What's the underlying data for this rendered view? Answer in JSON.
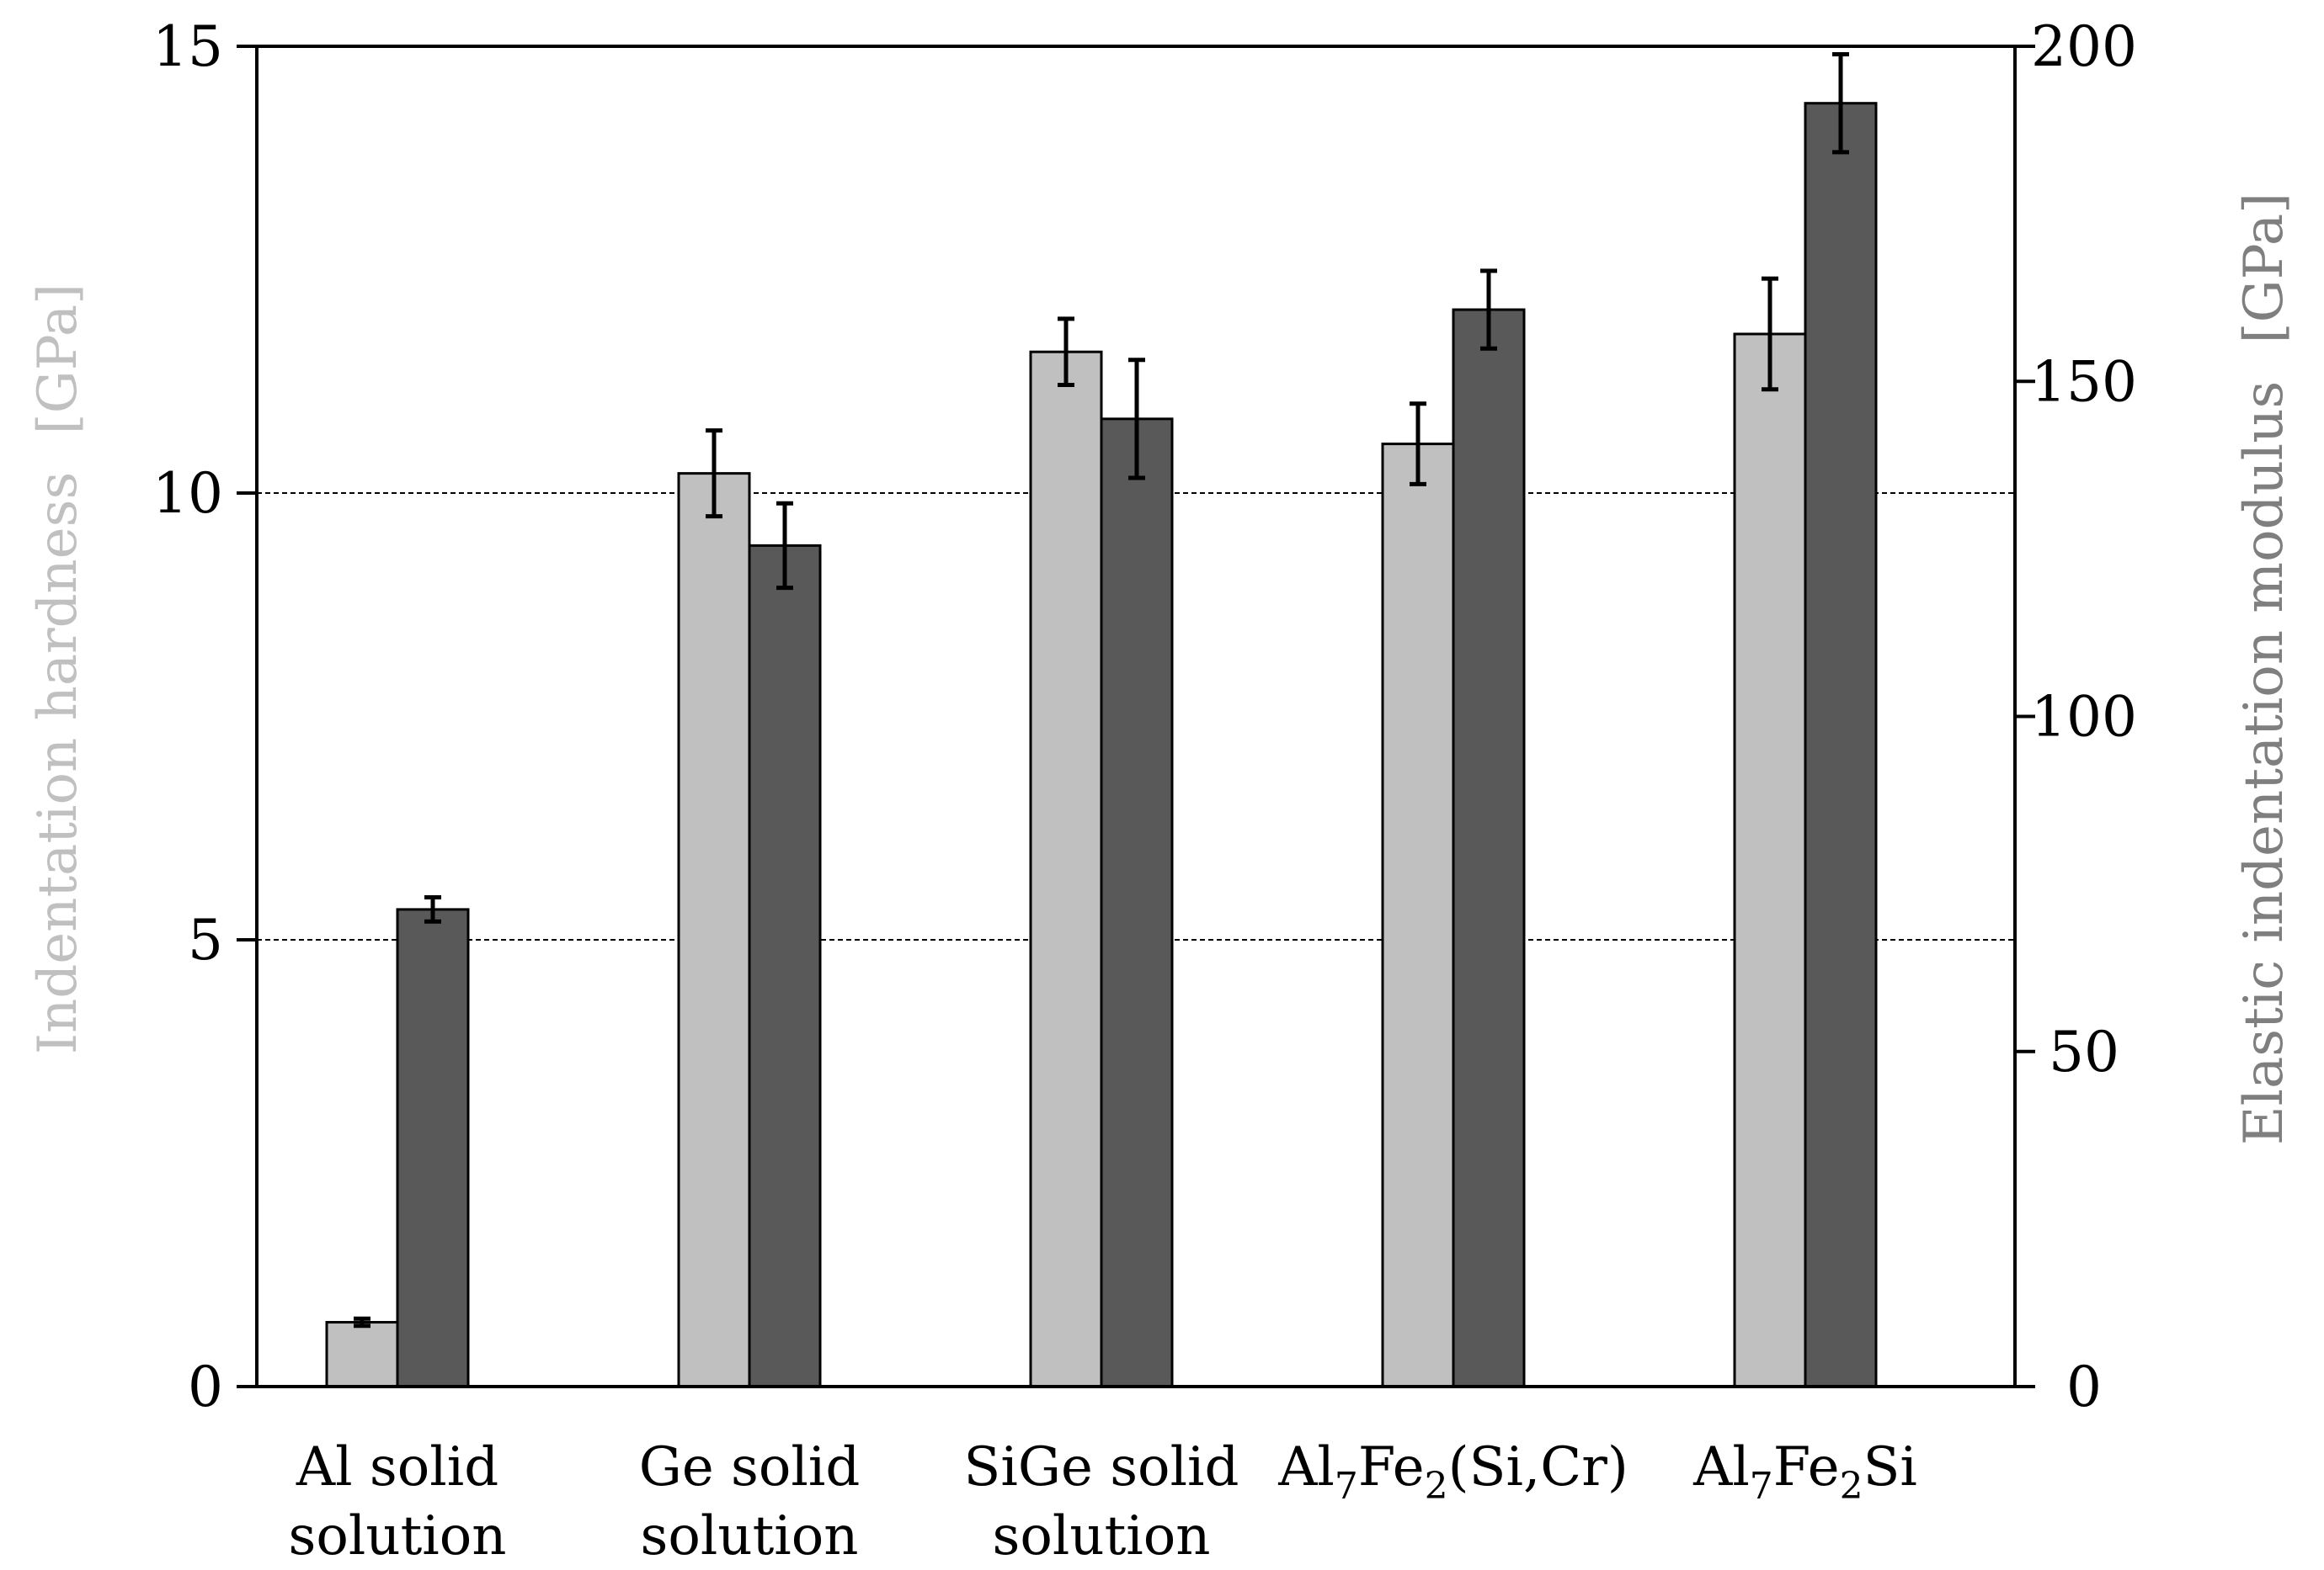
{
  "chart_data": {
    "type": "bar",
    "title": "",
    "categories": [
      {
        "lines": [
          "Al solid",
          "solution"
        ]
      },
      {
        "lines": [
          "Ge solid",
          "solution"
        ]
      },
      {
        "lines": [
          "SiGe solid",
          "solution"
        ]
      },
      {
        "parts": [
          [
            "Al",
            ""
          ],
          [
            "7",
            "sub"
          ],
          [
            "Fe",
            ""
          ],
          [
            "2",
            "sub"
          ],
          [
            "(Si,Cr)",
            ""
          ]
        ]
      },
      {
        "parts": [
          [
            "Al",
            ""
          ],
          [
            "7",
            "sub"
          ],
          [
            "Fe",
            ""
          ],
          [
            "2",
            "sub"
          ],
          [
            "Si",
            ""
          ]
        ]
      }
    ],
    "series": [
      {
        "name": "Indentation hardness",
        "axis": "left",
        "color": "#c0c0c0",
        "values": [
          0.72,
          10.22,
          11.58,
          10.55,
          11.78
        ],
        "errors": [
          0.04,
          0.48,
          0.37,
          0.45,
          0.62
        ]
      },
      {
        "name": "Elastic indentation modulus",
        "axis": "right",
        "color": "#595959",
        "values": [
          71.2,
          125.5,
          144.4,
          160.7,
          191.5
        ],
        "errors": [
          1.8,
          6.3,
          8.8,
          5.8,
          7.3
        ]
      }
    ],
    "left_axis": {
      "label": "Indentation hardness",
      "unit": "[GPa]",
      "label_color": "#c0c0c0",
      "ylim": [
        0,
        15
      ],
      "ticks": [
        "0",
        "5",
        "10",
        "15"
      ]
    },
    "right_axis": {
      "label": "Elastic indentation modulus",
      "unit": "[GPa]",
      "label_color": "#7f7f7f",
      "ylim": [
        0,
        200
      ],
      "ticks": [
        "0",
        "50",
        "100",
        "150",
        "200"
      ]
    },
    "gridlines_at": [
      5,
      10
    ],
    "grid_style": "dashed"
  }
}
